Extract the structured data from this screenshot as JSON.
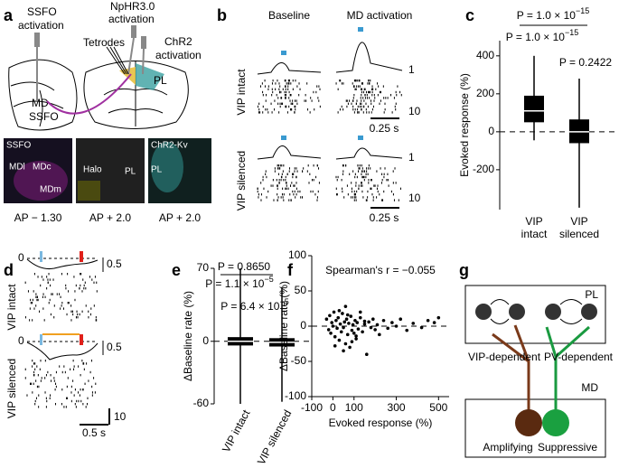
{
  "panels": {
    "labels": [
      "a",
      "b",
      "c",
      "d",
      "e",
      "f",
      "g"
    ],
    "a": {
      "ssfo_1": "SSFO",
      "ssfo_2": "activation",
      "nphr_1": "NpHR3.0",
      "nphr_2": "activation",
      "tetrodes": "Tetrodes",
      "chr2_1": "ChR2",
      "chr2_2": "activation",
      "pl": "PL",
      "md": "MD",
      "ssfo_region": "SSFO",
      "img1": [
        "SSFO",
        "MDl",
        "MDc",
        "MDm"
      ],
      "img2": [
        "Halo",
        "PL"
      ],
      "img3": [
        "ChR2-Kv",
        "PL"
      ],
      "captions": [
        "AP − 1.30",
        "AP + 2.0",
        "AP + 2.0"
      ]
    },
    "b": {
      "baseline": "Baseline",
      "md_activation": "MD activation",
      "vip_intact": "VIP intact",
      "vip_silenced": "VIP silenced",
      "scale_rate": [
        "1",
        "1"
      ],
      "scale_trials": [
        "10",
        "10"
      ],
      "scale_time": [
        "0.25 s",
        "0.25 s"
      ]
    },
    "d": {
      "zero": [
        "0",
        "0"
      ],
      "scale_rate": [
        "0.5",
        "0.5"
      ],
      "vip_intact": "VIP intact",
      "vip_silenced": "VIP silenced",
      "scale_trials": "10",
      "scale_time": "0.5 s"
    },
    "g": {
      "pl": "PL",
      "vip_dependent": "VIP-dependent",
      "pv_dependent": "PV-dependent",
      "md": "MD",
      "amplifying": "Amplifying",
      "suppressive": "Suppressive"
    }
  },
  "chart_data": [
    {
      "type": "box",
      "ylabel": "Evoked response (%)",
      "categories": [
        "VIP intact",
        "VIP silenced"
      ],
      "color": "#000000",
      "boxes": [
        {
          "low": -45,
          "q1": 50,
          "median": 110,
          "q3": 190,
          "high": 400
        },
        {
          "low": -400,
          "q1": -60,
          "median": 0,
          "q3": 65,
          "high": 280
        }
      ],
      "ylim": [
        -410,
        480
      ],
      "yticks": [
        -200,
        0,
        200,
        400
      ],
      "annotations": [
        {
          "base": "P = 1.0 × 10",
          "exp": "−15"
        },
        {
          "base": "P = 1.0 × 10",
          "exp": "−15"
        },
        {
          "base": "P = 0.2422",
          "exp": ""
        }
      ]
    },
    {
      "type": "box",
      "ylabel": "ΔBaseline rate (%)",
      "categories": [
        "VIP intact",
        "VIP silenced"
      ],
      "color": "#000000",
      "boxes": [
        {
          "low": -60,
          "q1": -4,
          "median": 0,
          "q3": 4,
          "high": 70
        },
        {
          "low": -58,
          "q1": -5,
          "median": -1,
          "q3": 3,
          "high": 52
        }
      ],
      "ylim": [
        -60,
        70
      ],
      "yticks": [
        -60,
        0,
        70
      ],
      "annotations": [
        {
          "base": "P = 0.8650",
          "exp": ""
        },
        {
          "base": "P = 1.1 × 10",
          "exp": "−5"
        },
        {
          "base": "P = 6.4 × 10",
          "exp": "−5"
        }
      ]
    },
    {
      "type": "scatter",
      "xlabel": "Evoked response (%)",
      "ylabel": "ΔBaseline rate (%)",
      "annotation": "Spearman's r = −0.055",
      "color": "#000000",
      "x": [
        -30,
        -20,
        -15,
        -10,
        -5,
        0,
        5,
        10,
        15,
        20,
        25,
        30,
        35,
        40,
        45,
        50,
        55,
        60,
        65,
        70,
        75,
        80,
        85,
        90,
        95,
        100,
        105,
        110,
        115,
        120,
        130,
        140,
        150,
        160,
        170,
        180,
        190,
        200,
        210,
        220,
        240,
        260,
        280,
        300,
        320,
        350,
        380,
        420,
        450,
        480,
        500,
        10,
        30,
        50,
        70,
        90,
        110,
        130,
        150,
        60
      ],
      "y": [
        10,
        -5,
        15,
        -10,
        5,
        0,
        20,
        -15,
        8,
        -3,
        12,
        -20,
        3,
        -8,
        18,
        -2,
        6,
        -25,
        10,
        -12,
        4,
        -30,
        14,
        -6,
        2,
        -10,
        8,
        -18,
        5,
        -4,
        12,
        -8,
        3,
        -40,
        6,
        -2,
        10,
        -5,
        2,
        -12,
        8,
        -3,
        5,
        0,
        10,
        -6,
        4,
        -2,
        8,
        5,
        12,
        -28,
        22,
        -35,
        16,
        -22,
        -14,
        20,
        7,
        28
      ],
      "xlim": [
        -100,
        550
      ],
      "xticks": [
        -100,
        0,
        100,
        300,
        500
      ],
      "ylim": [
        -100,
        100
      ],
      "yticks": [
        -100,
        -50,
        0,
        50,
        100
      ]
    }
  ]
}
